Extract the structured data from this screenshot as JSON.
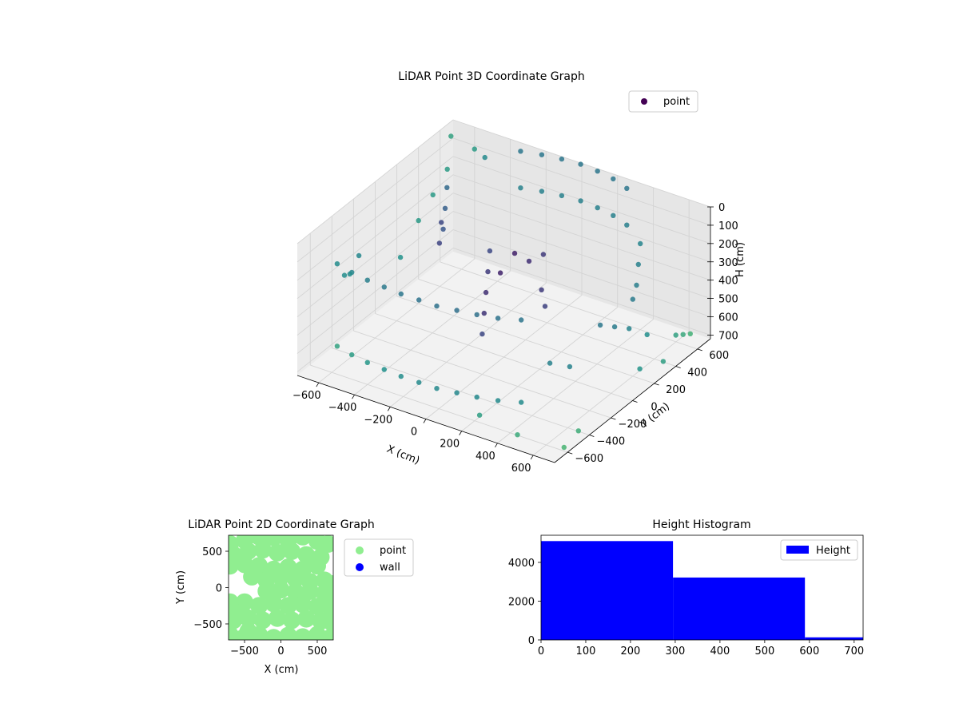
{
  "chart_data": [
    {
      "type": "scatter",
      "title": "LiDAR Point 3D Coordinate Graph",
      "xlabel": "X (cm)",
      "ylabel": "Y (cm)",
      "zlabel": "H (cm)",
      "xlim": [
        -720,
        720
      ],
      "ylim": [
        -720,
        720
      ],
      "zlim": [
        0,
        720
      ],
      "z_inverted": true,
      "grid": true,
      "legend": {
        "placement": "top-right",
        "entries": [
          "point"
        ]
      },
      "x_ticks": [
        "−600",
        "−400",
        "−200",
        "0",
        "200",
        "400",
        "600"
      ],
      "y_ticks": [
        "−600",
        "−400",
        "−200",
        "0",
        "200",
        "400",
        "600"
      ],
      "z_ticks": [
        "0",
        "100",
        "200",
        "300",
        "400",
        "500",
        "600",
        "700"
      ],
      "colormap": "viridis",
      "series": [
        {
          "name": "point",
          "points": [
            [
              -300,
              650,
              0
            ],
            [
              -200,
              680,
              0
            ],
            [
              -100,
              700,
              0
            ],
            [
              0,
              710,
              0
            ],
            [
              100,
              700,
              0
            ],
            [
              200,
              680,
              0
            ],
            [
              300,
              640,
              0
            ],
            [
              -300,
              650,
              200
            ],
            [
              -200,
              680,
              200
            ],
            [
              -100,
              700,
              200
            ],
            [
              0,
              710,
              200
            ],
            [
              100,
              700,
              200
            ],
            [
              200,
              680,
              200
            ],
            [
              300,
              640,
              200
            ],
            [
              -500,
              300,
              100
            ],
            [
              -450,
              200,
              150
            ],
            [
              -400,
              100,
              200
            ],
            [
              -350,
              0,
              100
            ],
            [
              -300,
              -100,
              150
            ],
            [
              600,
              -100,
              300
            ],
            [
              620,
              0,
              350
            ],
            [
              640,
              100,
              400
            ],
            [
              600,
              200,
              300
            ],
            [
              -600,
              -550,
              150
            ],
            [
              -500,
              -580,
              150
            ],
            [
              -400,
              -600,
              150
            ],
            [
              -300,
              -610,
              150
            ],
            [
              -200,
              -620,
              150
            ],
            [
              -100,
              -620,
              150
            ],
            [
              0,
              -620,
              150
            ],
            [
              100,
              -600,
              150
            ],
            [
              200,
              -580,
              150
            ],
            [
              300,
              -550,
              150
            ],
            [
              400,
              -500,
              150
            ],
            [
              -600,
              -550,
              600
            ],
            [
              -500,
              -580,
              600
            ],
            [
              -400,
              -600,
              600
            ],
            [
              -300,
              -610,
              600
            ],
            [
              -200,
              -620,
              600
            ],
            [
              -100,
              -620,
              600
            ],
            [
              0,
              -620,
              600
            ],
            [
              100,
              -600,
              600
            ],
            [
              200,
              -580,
              600
            ],
            [
              300,
              -550,
              600
            ],
            [
              400,
              -500,
              600
            ],
            [
              -650,
              -400,
              300
            ],
            [
              -680,
              -300,
              350
            ],
            [
              -690,
              -200,
              300
            ],
            [
              500,
              -400,
              400
            ],
            [
              550,
              -300,
              450
            ],
            [
              0,
              100,
              200
            ],
            [
              50,
              150,
              250
            ],
            [
              100,
              200,
              220
            ],
            [
              -50,
              50,
              300
            ],
            [
              150,
              100,
              350
            ],
            [
              200,
              50,
              400
            ],
            [
              -200,
              200,
              300
            ],
            [
              -150,
              100,
              350
            ],
            [
              -100,
              0,
              400
            ],
            [
              -50,
              -100,
              450
            ],
            [
              0,
              -200,
              500
            ],
            [
              -700,
              200,
              500
            ],
            [
              -720,
              400,
              400
            ],
            [
              -700,
              500,
              300
            ],
            [
              -680,
              600,
              200
            ],
            [
              -500,
              650,
              100
            ],
            [
              720,
              400,
              550
            ],
            [
              700,
              500,
              600
            ],
            [
              680,
              600,
              650
            ],
            [
              720,
              -500,
              650
            ],
            [
              700,
              -600,
              700
            ],
            [
              500,
              -700,
              650
            ],
            [
              300,
              -720,
              600
            ],
            [
              650,
              250,
              500
            ],
            [
              700,
              100,
              600
            ],
            [
              710,
              300,
              650
            ],
            [
              -720,
              700,
              80
            ],
            [
              -600,
              720,
              120
            ],
            [
              400,
              600,
              250
            ],
            [
              450,
              500,
              300
            ],
            [
              500,
              400,
              350
            ]
          ]
        }
      ]
    },
    {
      "type": "scatter",
      "title": "LiDAR Point 2D Coordinate Graph",
      "xlabel": "X (cm)",
      "ylabel": "Y (cm)",
      "xlim": [
        -720,
        720
      ],
      "ylim": [
        -720,
        720
      ],
      "grid": false,
      "legend": {
        "placement": "outside-right",
        "entries": [
          "point",
          "wall"
        ]
      },
      "x_ticks": [
        "−500",
        "0",
        "500"
      ],
      "y_ticks": [
        "−500",
        "0",
        "500"
      ],
      "series": [
        {
          "name": "point",
          "color": "#90ee90",
          "points": [
            [
              -700,
              600
            ],
            [
              -500,
              650
            ],
            [
              -300,
              700
            ],
            [
              -100,
              690
            ],
            [
              100,
              650
            ],
            [
              300,
              700
            ],
            [
              500,
              640
            ],
            [
              650,
              600
            ],
            [
              -650,
              450
            ],
            [
              -450,
              500
            ],
            [
              -250,
              520
            ],
            [
              -50,
              480
            ],
            [
              150,
              500
            ],
            [
              350,
              450
            ],
            [
              550,
              420
            ],
            [
              -700,
              300
            ],
            [
              -500,
              320
            ],
            [
              -300,
              300
            ],
            [
              -100,
              250
            ],
            [
              100,
              280
            ],
            [
              300,
              250
            ],
            [
              500,
              300
            ],
            [
              -400,
              150
            ],
            [
              -200,
              100
            ],
            [
              0,
              150
            ],
            [
              200,
              120
            ],
            [
              400,
              80
            ],
            [
              600,
              100
            ],
            [
              700,
              50
            ],
            [
              -200,
              -50
            ],
            [
              0,
              -30
            ],
            [
              200,
              -60
            ],
            [
              400,
              -50
            ],
            [
              600,
              -80
            ],
            [
              700,
              -150
            ],
            [
              -500,
              -200
            ],
            [
              -300,
              -250
            ],
            [
              -100,
              -220
            ],
            [
              100,
              -250
            ],
            [
              300,
              -230
            ],
            [
              500,
              -260
            ],
            [
              700,
              -300
            ],
            [
              -650,
              -450
            ],
            [
              -450,
              -420
            ],
            [
              -250,
              -450
            ],
            [
              -50,
              -420
            ],
            [
              150,
              -450
            ],
            [
              350,
              -430
            ],
            [
              550,
              -460
            ],
            [
              700,
              -480
            ],
            [
              -700,
              -650
            ],
            [
              -500,
              -680
            ],
            [
              -300,
              -650
            ],
            [
              -100,
              -690
            ],
            [
              100,
              -660
            ],
            [
              300,
              -680
            ],
            [
              500,
              -650
            ],
            [
              680,
              -690
            ],
            [
              -700,
              -200
            ],
            [
              -600,
              -350
            ],
            [
              -450,
              -600
            ]
          ]
        },
        {
          "name": "wall",
          "color": "#0000ff",
          "points": []
        }
      ]
    },
    {
      "type": "bar",
      "title": "Height Histogram",
      "xlabel": "",
      "ylabel": "",
      "xlim": [
        0,
        720
      ],
      "ylim": [
        0,
        5400
      ],
      "grid": false,
      "legend": {
        "placement": "top-right",
        "entries": [
          "Height"
        ]
      },
      "x_ticks": [
        "0",
        "100",
        "200",
        "300",
        "400",
        "500",
        "600",
        "700"
      ],
      "y_ticks": [
        "0",
        "2000",
        "4000"
      ],
      "series": [
        {
          "name": "Height",
          "color": "#0000ff",
          "bins": [
            {
              "start": 0,
              "end": 295,
              "count": 5100
            },
            {
              "start": 295,
              "end": 590,
              "count": 3220
            },
            {
              "start": 590,
              "end": 720,
              "count": 130
            }
          ]
        }
      ]
    }
  ]
}
